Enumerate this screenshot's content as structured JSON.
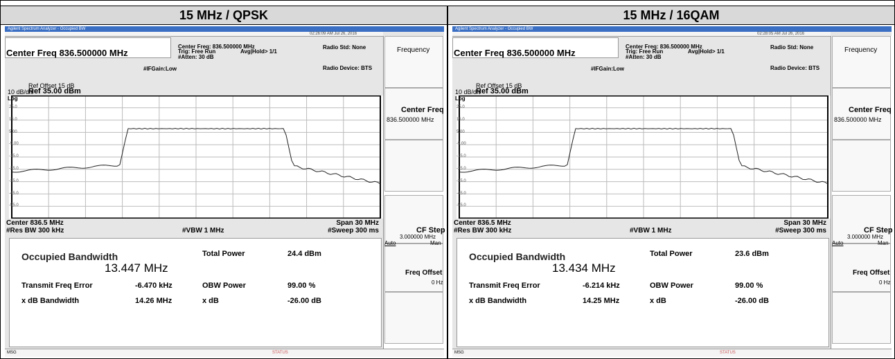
{
  "panels": [
    {
      "title": "15 MHz / QPSK",
      "screen": {
        "app_title": "Agilent Spectrum Analyzer - Occupied BW",
        "timestamp": "02:26:09 AM Jul 26, 2016",
        "center_freq": "Center Freq 836.500000 MHz",
        "info": [
          "Center Freq: 836.500000 MHz",
          "Trig: Free Run",
          "Avg|Hold> 1/1",
          "#Atten: 30 dB",
          "#IFGain:Low",
          "Radio Std: None",
          "Radio Device: BTS"
        ],
        "ref_offset": "Ref Offset 15 dB",
        "scale": "10 dB/div",
        "ref_level": "Ref 35.00 dBm",
        "log": "Log",
        "y_labels": [
          "25.0",
          "15.0",
          "5.00",
          "-5.00",
          "-15.0",
          "-25.0",
          "-35.0",
          "-45.0",
          "-55.0"
        ],
        "center": "Center  836.5 MHz",
        "res_bw": "#Res BW  300 kHz",
        "vbw": "#VBW  1 MHz",
        "span": "Span 30 MHz",
        "sweep": "#Sweep  300 ms",
        "results": {
          "obw_label": "Occupied Bandwidth",
          "obw_value": "13.447 MHz",
          "total_power_label": "Total Power",
          "total_power": "24.4 dBm",
          "freq_error_label": "Transmit Freq Error",
          "freq_error": "-6.470 kHz",
          "obw_power_label": "OBW Power",
          "obw_power": "99.00 %",
          "xdb_bw_label": "x dB Bandwidth",
          "xdb_bw": "14.26 MHz",
          "xdb_label": "x dB",
          "xdb": "-26.00 dB"
        },
        "softkeys": {
          "frequency": "Frequency",
          "center_freq": "Center Freq",
          "center_freq_value": "836.500000 MHz",
          "cf_step": "CF Step",
          "cf_step_value": "3.000000 MHz",
          "auto": "Auto",
          "man": "Man",
          "freq_offset": "Freq Offset",
          "freq_offset_value": "0 Hz"
        },
        "status": {
          "msg": "MSG",
          "status": "STATUS"
        }
      }
    },
    {
      "title": "15 MHz / 16QAM",
      "screen": {
        "app_title": "Agilent Spectrum Analyzer - Occupied BW",
        "timestamp": "02:28:05 AM Jul 26, 2016",
        "center_freq": "Center Freq 836.500000 MHz",
        "info": [
          "Center Freq: 836.500000 MHz",
          "Trig: Free Run",
          "Avg|Hold> 1/1",
          "#Atten: 30 dB",
          "#IFGain:Low",
          "Radio Std: None",
          "Radio Device: BTS"
        ],
        "ref_offset": "Ref Offset 15 dB",
        "scale": "10 dB/div",
        "ref_level": "Ref 35.00 dBm",
        "log": "Log",
        "y_labels": [
          "25.0",
          "15.0",
          "5.00",
          "-5.00",
          "-15.0",
          "-25.0",
          "-35.0",
          "-45.0",
          "-55.0"
        ],
        "center": "Center  836.5 MHz",
        "res_bw": "#Res BW  300 kHz",
        "vbw": "#VBW  1 MHz",
        "span": "Span 30 MHz",
        "sweep": "#Sweep  300 ms",
        "results": {
          "obw_label": "Occupied Bandwidth",
          "obw_value": "13.434 MHz",
          "total_power_label": "Total Power",
          "total_power": "23.6 dBm",
          "freq_error_label": "Transmit Freq Error",
          "freq_error": "-6.214 kHz",
          "obw_power_label": "OBW Power",
          "obw_power": "99.00 %",
          "xdb_bw_label": "x dB Bandwidth",
          "xdb_bw": "14.25 MHz",
          "xdb_label": "x dB",
          "xdb": "-26.00 dB"
        },
        "softkeys": {
          "frequency": "Frequency",
          "center_freq": "Center Freq",
          "center_freq_value": "836.500000 MHz",
          "cf_step": "CF Step",
          "cf_step_value": "3.000000 MHz",
          "auto": "Auto",
          "man": "Man",
          "freq_offset": "Freq Offset",
          "freq_offset_value": "0 Hz"
        },
        "status": {
          "msg": "MSG",
          "status": "STATUS"
        }
      }
    }
  ]
}
